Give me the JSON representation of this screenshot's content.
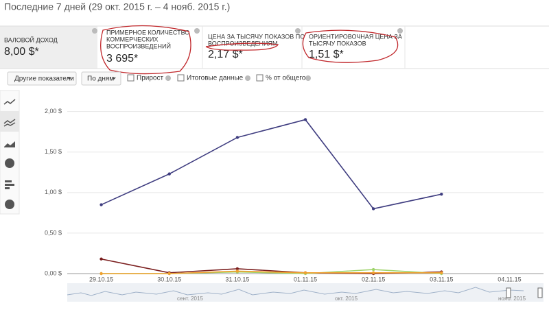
{
  "header": {
    "title": "Последние 7 дней (29 окт. 2015 г. – 4 нояб. 2015 г.)"
  },
  "metrics": [
    {
      "label": "ВАЛОВОЙ ДОХОД",
      "value": "8,00 $*"
    },
    {
      "label": [
        "ПРИМЕРНОЕ КОЛИЧЕСТВО",
        "КОММЕРЧЕСКИХ",
        "ВОСПРОИЗВЕДЕНИЙ"
      ],
      "value": "3 695*"
    },
    {
      "label": [
        "ЦЕНА ЗА ТЫСЯЧУ ПОКАЗОВ ПО",
        "ВОСПРОИЗВЕДЕНИЯМ"
      ],
      "value": "2,17 $*"
    },
    {
      "label": [
        "ОРИЕНТИРОВОЧНАЯ ЦЕНА ЗА",
        "ТЫСЯЧУ ПОКАЗОВ"
      ],
      "value": "1,51 $*"
    }
  ],
  "controls": {
    "buttons": [
      "Другие показатели",
      "По дням"
    ],
    "checkboxes": [
      "Прирост",
      "Итоговые данные",
      "% от общего"
    ]
  },
  "timeline": {
    "labels": [
      "сент. 2015",
      "окт. 2015",
      "нояб. 2015"
    ]
  },
  "chart_data": {
    "type": "line",
    "categories": [
      "29.10.15",
      "30.10.15",
      "31.10.15",
      "01.11.15",
      "02.11.15",
      "03.11.15",
      "04.11.15"
    ],
    "series": [
      {
        "color": "#3f3d80",
        "values": [
          0.85,
          1.23,
          1.68,
          1.9,
          0.8,
          0.98,
          null
        ]
      },
      {
        "color": "#7b1f1f",
        "values": [
          0.18,
          0.01,
          0.06,
          0.01,
          0.0,
          0.02,
          null
        ]
      },
      {
        "color": "#9fd36b",
        "values": [
          0.0,
          0.0,
          0.02,
          0.0,
          0.05,
          0.0,
          null
        ]
      },
      {
        "color": "#f0a030",
        "values": [
          0.0,
          0.0,
          0.03,
          0.01,
          0.01,
          0.01,
          null
        ]
      }
    ],
    "ylim": [
      0,
      2.2
    ],
    "yticks": [
      {
        "value": 0,
        "label": "0,00 $"
      },
      {
        "value": 0.5,
        "label": "0,50 $"
      },
      {
        "value": 1,
        "label": "1,00 $"
      },
      {
        "value": 1.5,
        "label": "1,50 $"
      },
      {
        "value": 2,
        "label": "2,00 $"
      }
    ],
    "grid": true
  }
}
